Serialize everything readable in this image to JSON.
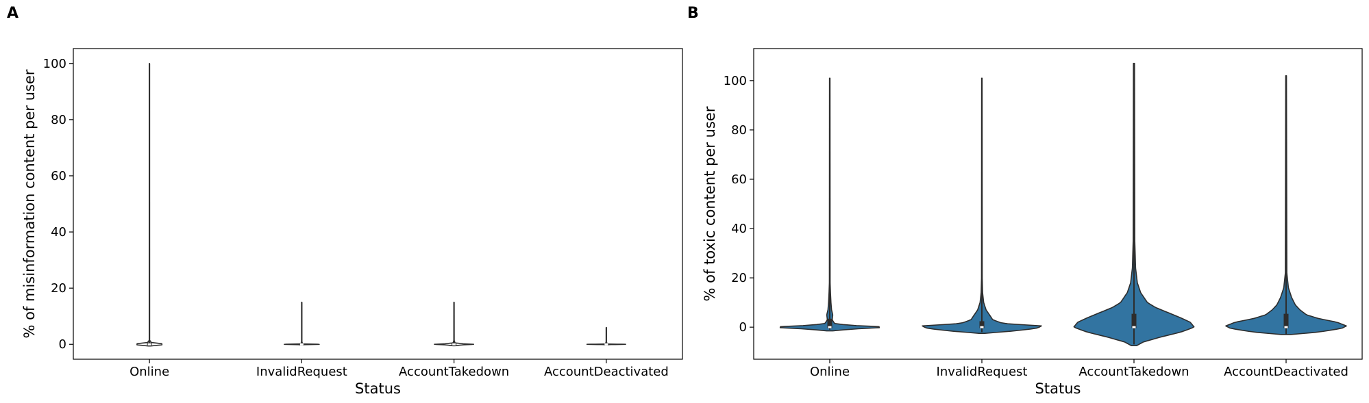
{
  "chart_data": [
    {
      "panel": "A",
      "type": "violin",
      "xlabel": "Status",
      "ylabel": "% of misinformation content per user",
      "categories": [
        "Online",
        "InvalidRequest",
        "AccountTakedown",
        "AccountDeactivated"
      ],
      "ylim": [
        -5.3,
        105.3
      ],
      "yticks": [
        0,
        20,
        40,
        60,
        80,
        100
      ],
      "series": [
        {
          "category": "Online",
          "min": 0,
          "max": 100,
          "median": 0,
          "q1": 0,
          "q3": 0.3,
          "profile": [
            [
              -0.6,
              0.05
            ],
            [
              -0.3,
              0.35
            ],
            [
              0,
              1
            ],
            [
              0.3,
              0.5
            ],
            [
              0.6,
              0.1
            ],
            [
              1.5,
              0.006
            ],
            [
              100,
              0.004
            ]
          ]
        },
        {
          "category": "InvalidRequest",
          "min": 0,
          "max": 15,
          "median": 0,
          "q1": 0,
          "q3": 0,
          "profile": [
            [
              -0.15,
              0.05
            ],
            [
              0,
              1
            ],
            [
              0.15,
              0.05
            ],
            [
              1,
              0.004
            ],
            [
              15,
              0.004
            ]
          ]
        },
        {
          "category": "AccountTakedown",
          "min": 0,
          "max": 15,
          "median": 0,
          "q1": 0,
          "q3": 0.2,
          "profile": [
            [
              -0.5,
              0.05
            ],
            [
              -0.2,
              0.4
            ],
            [
              0,
              1
            ],
            [
              0.2,
              0.45
            ],
            [
              0.5,
              0.05
            ],
            [
              1.5,
              0.006
            ],
            [
              15,
              0.004
            ]
          ]
        },
        {
          "category": "AccountDeactivated",
          "min": 0,
          "max": 6,
          "median": 0,
          "q1": 0,
          "q3": 0,
          "profile": [
            [
              -0.12,
              0.05
            ],
            [
              0,
              1
            ],
            [
              0.12,
              0.05
            ],
            [
              1,
              0.004
            ],
            [
              6,
              0.004
            ]
          ]
        }
      ]
    },
    {
      "panel": "B",
      "type": "violin",
      "xlabel": "Status",
      "ylabel": "% of toxic content per user",
      "categories": [
        "Online",
        "InvalidRequest",
        "AccountTakedown",
        "AccountDeactivated"
      ],
      "ylim": [
        -13,
        113
      ],
      "yticks": [
        0,
        20,
        40,
        60,
        80,
        100
      ],
      "color": "#3274a1",
      "series": [
        {
          "category": "Online",
          "min": -1,
          "max": 101,
          "median": 0,
          "q1": 0,
          "q3": 3,
          "profile": [
            [
              -1.5,
              0.05
            ],
            [
              -0.8,
              0.35
            ],
            [
              0,
              1
            ],
            [
              0.8,
              0.3
            ],
            [
              1.5,
              0.08
            ],
            [
              3,
              0.04
            ],
            [
              5,
              0.05
            ],
            [
              7,
              0.03
            ],
            [
              10,
              0.02
            ],
            [
              14,
              0.012
            ],
            [
              18,
              0.006
            ],
            [
              101,
              0.004
            ]
          ]
        },
        {
          "category": "InvalidRequest",
          "min": -2,
          "max": 101,
          "median": 0,
          "q1": 0,
          "q3": 2,
          "profile": [
            [
              -2.5,
              0.05
            ],
            [
              -1.5,
              0.55
            ],
            [
              -0.5,
              0.9
            ],
            [
              0.5,
              1
            ],
            [
              1.5,
              0.35
            ],
            [
              3,
              0.18
            ],
            [
              4.5,
              0.14
            ],
            [
              7,
              0.07
            ],
            [
              10,
              0.03
            ],
            [
              14,
              0.012
            ],
            [
              20,
              0.006
            ],
            [
              101,
              0.004
            ]
          ]
        },
        {
          "category": "AccountTakedown",
          "min": -7,
          "max": 107,
          "median": 0,
          "q1": 0,
          "q3": 5,
          "profile": [
            [
              -7.5,
              0.02
            ],
            [
              -6,
              0.07
            ],
            [
              -4,
              0.2
            ],
            [
              -2,
              0.35
            ],
            [
              0,
              0.45
            ],
            [
              2,
              0.42
            ],
            [
              4,
              0.34
            ],
            [
              6,
              0.25
            ],
            [
              8,
              0.16
            ],
            [
              10,
              0.1
            ],
            [
              14,
              0.05
            ],
            [
              18,
              0.025
            ],
            [
              24,
              0.012
            ],
            [
              35,
              0.006
            ],
            [
              107,
              0.004
            ]
          ]
        },
        {
          "category": "AccountDeactivated",
          "min": -3,
          "max": 102,
          "median": 0,
          "q1": 0,
          "q3": 5,
          "profile": [
            [
              -3,
              0.05
            ],
            [
              -2,
              0.35
            ],
            [
              -0.5,
              0.6
            ],
            [
              0.5,
              0.65
            ],
            [
              2,
              0.55
            ],
            [
              3.5,
              0.35
            ],
            [
              5,
              0.22
            ],
            [
              7,
              0.15
            ],
            [
              9,
              0.1
            ],
            [
              12,
              0.06
            ],
            [
              16,
              0.025
            ],
            [
              22,
              0.008
            ],
            [
              102,
              0.004
            ]
          ]
        }
      ]
    }
  ]
}
